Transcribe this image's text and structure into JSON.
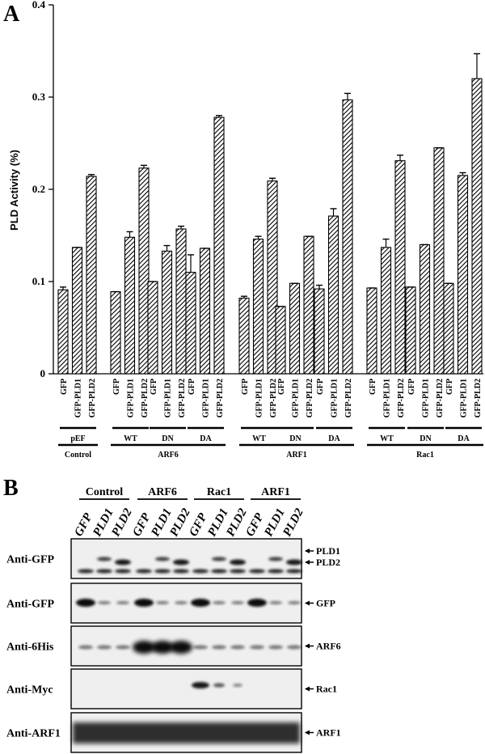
{
  "panel_a_label": "A",
  "panel_b_label": "B",
  "chart_data": {
    "type": "bar",
    "ylabel": "PLD Activity (%)",
    "ylim": [
      0,
      0.4
    ],
    "yticks": [
      "0",
      "0.1",
      "0.2",
      "0.3",
      "0.4"
    ],
    "bar_colors": {
      "fill": "#ffffff",
      "hatch": "#000000"
    },
    "categories": [
      "GFP",
      "GFP-PLD1",
      "GFP-PLD2"
    ],
    "groups": [
      {
        "name": "pEF",
        "parent": "Control",
        "values": [
          0.091,
          0.137,
          0.214
        ],
        "errors": [
          0.003,
          0.0,
          0.002
        ]
      },
      {
        "name": "WT",
        "parent": "ARF6",
        "values": [
          0.089,
          0.148,
          0.223
        ],
        "errors": [
          0.0,
          0.006,
          0.003
        ]
      },
      {
        "name": "DN",
        "parent": "ARF6",
        "values": [
          0.1,
          0.133,
          0.157
        ],
        "errors": [
          0.0,
          0.006,
          0.003
        ]
      },
      {
        "name": "DA",
        "parent": "ARF6",
        "values": [
          0.11,
          0.136,
          0.278
        ],
        "errors": [
          0.019,
          0.0,
          0.002
        ]
      },
      {
        "name": "WT",
        "parent": "ARF1",
        "values": [
          0.082,
          0.146,
          0.209
        ],
        "errors": [
          0.002,
          0.003,
          0.003
        ]
      },
      {
        "name": "DN",
        "parent": "ARF1",
        "values": [
          0.073,
          0.098,
          0.149
        ],
        "errors": [
          0.0,
          0.0,
          0.0
        ]
      },
      {
        "name": "DA",
        "parent": "ARF1",
        "values": [
          0.092,
          0.171,
          0.297
        ],
        "errors": [
          0.004,
          0.008,
          0.007
        ]
      },
      {
        "name": "WT",
        "parent": "Rac1",
        "values": [
          0.093,
          0.137,
          0.231
        ],
        "errors": [
          0.0,
          0.009,
          0.006
        ]
      },
      {
        "name": "DN",
        "parent": "Rac1",
        "values": [
          0.094,
          0.14,
          0.245
        ],
        "errors": [
          0.0,
          0.0,
          0.0
        ]
      },
      {
        "name": "DA",
        "parent": "Rac1",
        "values": [
          0.098,
          0.215,
          0.32
        ],
        "errors": [
          0.0,
          0.003,
          0.027
        ]
      }
    ],
    "parent_groups": [
      "Control",
      "ARF6",
      "ARF1",
      "Rac1"
    ]
  },
  "blot": {
    "groups": [
      "Control",
      "ARF6",
      "Rac1",
      "ARF1"
    ],
    "lanes": [
      "GFP",
      "PLD1",
      "PLD2"
    ],
    "rows": [
      {
        "label": "Anti-GFP",
        "arrows": [
          "PLD1",
          "PLD2"
        ]
      },
      {
        "label": "Anti-GFP",
        "arrows": [
          "GFP"
        ]
      },
      {
        "label": "Anti-6His",
        "arrows": [
          "ARF6"
        ]
      },
      {
        "label": "Anti-Myc",
        "arrows": [
          "Rac1"
        ]
      },
      {
        "label": "Anti-ARF1",
        "arrows": [
          "ARF1"
        ]
      }
    ]
  }
}
